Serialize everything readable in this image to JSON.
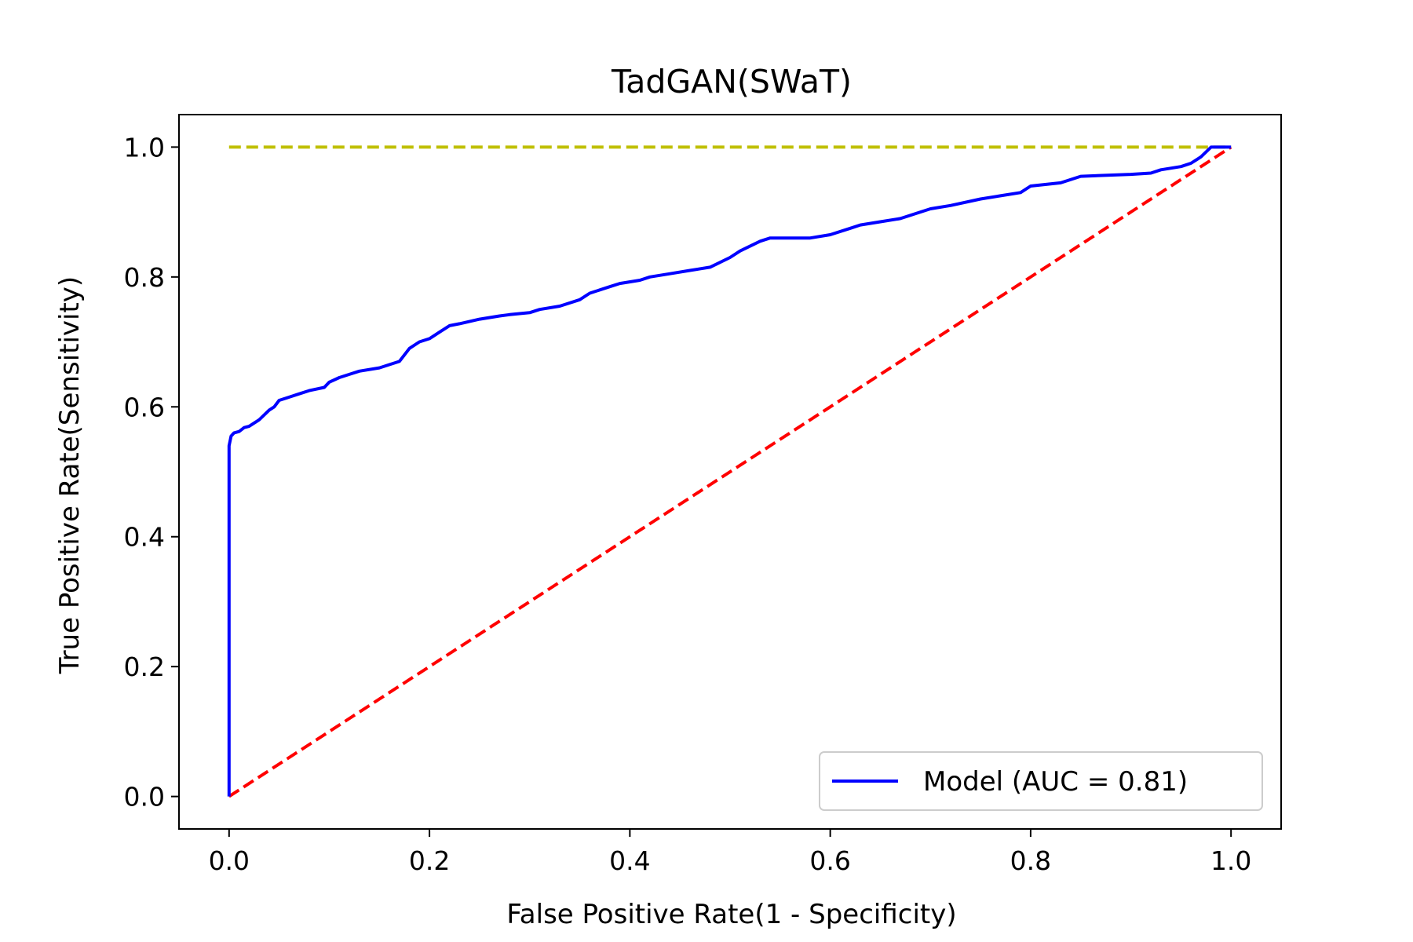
{
  "chart_data": {
    "type": "line",
    "title": "TadGAN(SWaT)",
    "xlabel": "False Positive Rate(1 - Specificity)",
    "ylabel": "True Positive Rate(Sensitivity)",
    "xlim": [
      -0.05,
      1.05
    ],
    "ylim": [
      -0.05,
      1.05
    ],
    "x_ticks": [
      0.0,
      0.2,
      0.4,
      0.6,
      0.8,
      1.0
    ],
    "y_ticks": [
      0.0,
      0.2,
      0.4,
      0.6,
      0.8,
      1.0
    ],
    "tick_labels_x": [
      "0.0",
      "0.2",
      "0.4",
      "0.6",
      "0.8",
      "1.0"
    ],
    "tick_labels_y": [
      "0.0",
      "0.2",
      "0.4",
      "0.6",
      "0.8",
      "1.0"
    ],
    "grid": false,
    "legend": {
      "placement": "lower-right",
      "entries": [
        "Model (AUC = 0.81)"
      ]
    },
    "series": [
      {
        "name": "Model (AUC = 0.81)",
        "color": "#0000ff",
        "style": "solid",
        "x": [
          0.0,
          0.0,
          0.0,
          0.002,
          0.005,
          0.01,
          0.015,
          0.02,
          0.03,
          0.04,
          0.045,
          0.05,
          0.06,
          0.07,
          0.08,
          0.095,
          0.1,
          0.11,
          0.12,
          0.13,
          0.15,
          0.16,
          0.17,
          0.18,
          0.19,
          0.2,
          0.21,
          0.22,
          0.23,
          0.25,
          0.27,
          0.28,
          0.3,
          0.31,
          0.33,
          0.35,
          0.36,
          0.38,
          0.39,
          0.41,
          0.42,
          0.44,
          0.46,
          0.48,
          0.5,
          0.51,
          0.53,
          0.54,
          0.55,
          0.58,
          0.6,
          0.62,
          0.63,
          0.65,
          0.67,
          0.69,
          0.7,
          0.72,
          0.75,
          0.77,
          0.79,
          0.8,
          0.83,
          0.85,
          0.9,
          0.92,
          0.93,
          0.95,
          0.96,
          0.97,
          0.98,
          1.0
        ],
        "y": [
          0.0,
          0.3,
          0.54,
          0.555,
          0.56,
          0.562,
          0.568,
          0.57,
          0.58,
          0.595,
          0.6,
          0.61,
          0.615,
          0.62,
          0.625,
          0.63,
          0.638,
          0.645,
          0.65,
          0.655,
          0.66,
          0.665,
          0.67,
          0.69,
          0.7,
          0.705,
          0.715,
          0.725,
          0.728,
          0.735,
          0.74,
          0.742,
          0.745,
          0.75,
          0.755,
          0.765,
          0.775,
          0.785,
          0.79,
          0.795,
          0.8,
          0.805,
          0.81,
          0.815,
          0.83,
          0.84,
          0.855,
          0.86,
          0.86,
          0.86,
          0.865,
          0.875,
          0.88,
          0.885,
          0.89,
          0.9,
          0.905,
          0.91,
          0.92,
          0.925,
          0.93,
          0.94,
          0.945,
          0.955,
          0.958,
          0.96,
          0.965,
          0.97,
          0.975,
          0.985,
          1.0,
          1.0
        ]
      },
      {
        "color": "#ff0000",
        "style": "dashed",
        "x": [
          0.0,
          1.0
        ],
        "y": [
          0.0,
          1.0
        ]
      },
      {
        "color": "#bfbf00",
        "style": "dashed",
        "x": [
          0.0,
          1.0
        ],
        "y": [
          1.0,
          1.0
        ]
      }
    ]
  }
}
